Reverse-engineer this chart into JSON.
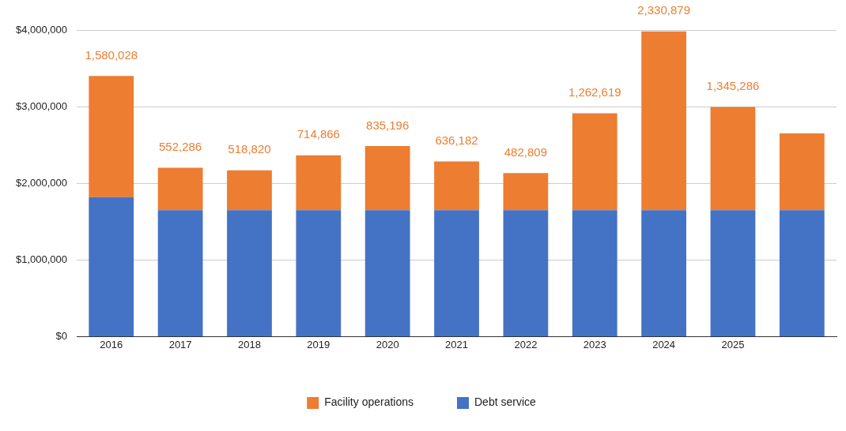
{
  "chart_data": {
    "type": "bar",
    "stacked": true,
    "categories": [
      "2016",
      "2017",
      "2018",
      "2019",
      "2020",
      "2021",
      "2022",
      "2023",
      "2024",
      "2025",
      null
    ],
    "series": [
      {
        "name": "Debt service",
        "color": "#4472c4",
        "values": [
          1820000,
          1650000,
          1650000,
          1650000,
          1650000,
          1650000,
          1650000,
          1650000,
          1650000,
          1650000,
          1650000
        ]
      },
      {
        "name": "Facility operations",
        "color": "#ed7d31",
        "values": [
          1580028,
          552286,
          518820,
          714866,
          835196,
          636182,
          482809,
          1262619,
          2330879,
          1345286,
          1000000
        ],
        "value_labels": [
          "1,580,028",
          "552,286",
          "518,820",
          "714,866",
          "835,196",
          "636,182",
          "482,809",
          "1,262,619",
          "2,330,879",
          "1,345,286",
          null
        ]
      }
    ],
    "ylim": [
      0,
      4000000
    ],
    "yticks": [
      {
        "value": 0,
        "label": "$0"
      },
      {
        "value": 1000000,
        "label": "$1,000,000"
      },
      {
        "value": 2000000,
        "label": "$2,000,000"
      },
      {
        "value": 3000000,
        "label": "$3,000,000"
      },
      {
        "value": 4000000,
        "label": "$4,000,000"
      }
    ],
    "grid": "y",
    "legend": "bottom"
  }
}
